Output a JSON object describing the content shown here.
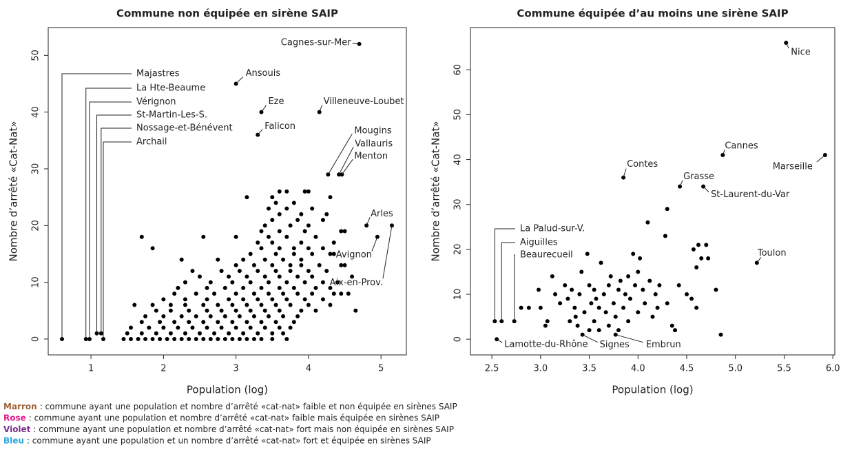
{
  "chart_data": [
    {
      "type": "scatter",
      "title": "Commune non équipée en sirène SAIP",
      "xlabel": "Population (log)",
      "ylabel": "Nombre d’arrêté «Cat-Nat»",
      "color": "#000000",
      "xlim": [
        0.41,
        5.35
      ],
      "ylim": [
        -2.8,
        54.9
      ],
      "xticks": [
        1,
        2,
        3,
        4,
        5
      ],
      "yticks": [
        0,
        10,
        20,
        30,
        40,
        50
      ],
      "x": [
        1.45,
        1.55,
        1.65,
        1.75,
        1.85,
        1.95,
        2.05,
        2.15,
        2.25,
        2.35,
        2.45,
        2.55,
        2.65,
        2.75,
        2.85,
        2.95,
        3.05,
        3.15,
        3.25,
        3.35,
        3.5,
        3.7,
        1.5,
        1.7,
        1.9,
        2.1,
        2.3,
        2.5,
        2.7,
        2.9,
        3.1,
        3.3,
        3.5,
        3.65,
        1.55,
        1.8,
        2.0,
        2.2,
        2.4,
        2.6,
        2.8,
        3.0,
        3.2,
        3.4,
        3.6,
        3.75,
        1.7,
        1.95,
        2.15,
        2.35,
        2.55,
        2.75,
        2.95,
        3.15,
        3.35,
        3.55,
        3.8,
        1.75,
        2.0,
        2.25,
        2.45,
        2.65,
        2.85,
        3.05,
        3.25,
        3.45,
        3.65,
        3.85,
        1.9,
        2.1,
        2.35,
        2.6,
        2.8,
        3.0,
        3.2,
        3.4,
        3.6,
        3.9,
        4.1,
        1.6,
        1.85,
        2.1,
        2.3,
        2.55,
        2.75,
        2.95,
        3.15,
        3.35,
        3.55,
        3.75,
        4.0,
        4.3,
        2.0,
        2.3,
        2.6,
        2.9,
        3.1,
        3.3,
        3.5,
        3.7,
        3.95,
        4.2,
        2.15,
        2.45,
        2.7,
        3.0,
        3.25,
        3.45,
        3.65,
        3.85,
        4.05,
        4.35,
        4.55,
        2.2,
        2.6,
        2.85,
        3.1,
        3.35,
        3.6,
        3.8,
        4.1,
        4.3,
        2.3,
        2.65,
        2.95,
        3.2,
        3.45,
        3.7,
        3.95,
        4.2,
        4.4,
        2.5,
        2.9,
        3.15,
        3.4,
        3.6,
        3.85,
        4.05,
        2.4,
        2.8,
        3.05,
        3.3,
        3.55,
        3.75,
        4.0,
        4.25,
        3.0,
        3.25,
        3.5,
        3.75,
        3.9,
        4.15,
        4.45,
        2.25,
        2.75,
        3.1,
        3.4,
        3.65,
        3.9,
        3.2,
        3.55,
        3.8,
        4.05,
        4.3,
        1.85,
        3.35,
        3.6,
        3.8,
        4.0,
        4.2,
        3.3,
        3.5,
        3.9,
        4.35,
        1.7,
        2.55,
        3.0,
        3.45,
        3.7,
        4.1,
        3.35,
        3.6,
        3.95,
        4.45,
        3.4,
        3.75,
        4.0,
        3.5,
        3.85,
        4.2,
        3.6,
        3.9,
        4.25,
        3.45,
        3.7,
        4.05,
        3.55,
        3.8,
        3.15,
        3.5,
        4.3,
        3.6,
        3.7,
        3.95,
        4.0,
        4.65,
        4.45,
        4.5,
        4.6,
        4.5,
        4.35
      ],
      "values": [
        0,
        0,
        0,
        0,
        0,
        0,
        0,
        0,
        0,
        0,
        0,
        0,
        0,
        0,
        0,
        0,
        0,
        0,
        0,
        0,
        0,
        0,
        1,
        1,
        1,
        1,
        1,
        1,
        1,
        1,
        1,
        1,
        1,
        1,
        2,
        2,
        2,
        2,
        2,
        2,
        2,
        2,
        2,
        2,
        2,
        2,
        3,
        3,
        3,
        3,
        3,
        3,
        3,
        3,
        3,
        3,
        3,
        4,
        4,
        4,
        4,
        4,
        4,
        4,
        4,
        4,
        4,
        4,
        5,
        5,
        5,
        5,
        5,
        5,
        5,
        5,
        5,
        5,
        5,
        6,
        6,
        6,
        6,
        6,
        6,
        6,
        6,
        6,
        6,
        6,
        6,
        6,
        7,
        7,
        7,
        7,
        7,
        7,
        7,
        7,
        7,
        7,
        8,
        8,
        8,
        8,
        8,
        8,
        8,
        8,
        8,
        8,
        8,
        9,
        9,
        9,
        9,
        9,
        9,
        9,
        9,
        9,
        10,
        10,
        10,
        10,
        10,
        10,
        10,
        10,
        10,
        11,
        11,
        11,
        11,
        11,
        11,
        11,
        12,
        12,
        12,
        12,
        12,
        12,
        12,
        12,
        13,
        13,
        13,
        13,
        13,
        13,
        13,
        14,
        14,
        14,
        14,
        14,
        14,
        15,
        15,
        15,
        15,
        15,
        16,
        16,
        16,
        16,
        16,
        16,
        17,
        17,
        17,
        17,
        18,
        18,
        18,
        18,
        18,
        18,
        19,
        19,
        19,
        19,
        20,
        20,
        20,
        21,
        21,
        21,
        22,
        22,
        22,
        23,
        23,
        23,
        24,
        24,
        25,
        25,
        25,
        26,
        26,
        26,
        26,
        5,
        8,
        13,
        11,
        19,
        15
      ],
      "annotations": [
        {
          "text": "Cagnes-sur-Mer",
          "x": 4.7,
          "y": 52,
          "color": "#7b2d8e"
        },
        {
          "text": "Ansouis",
          "x": 3.0,
          "y": 45,
          "color": "#7b2d8e"
        },
        {
          "text": "Eze",
          "x": 3.35,
          "y": 40,
          "color": "#7b2d8e"
        },
        {
          "text": "Villeneuve-Loubet",
          "x": 4.15,
          "y": 40,
          "color": "#7b2d8e"
        },
        {
          "text": "Falicon",
          "x": 3.3,
          "y": 36,
          "color": "#7b2d8e"
        },
        {
          "text": "Mougins",
          "x": 4.27,
          "y": 29,
          "color": "#7b2d8e"
        },
        {
          "text": "Vallauris",
          "x": 4.42,
          "y": 29,
          "color": "#7b2d8e"
        },
        {
          "text": "Menton",
          "x": 4.46,
          "y": 29,
          "color": "#7b2d8e"
        },
        {
          "text": "Arles",
          "x": 4.8,
          "y": 20,
          "color": "#7b2d8e"
        },
        {
          "text": "Avignon",
          "x": 4.95,
          "y": 18,
          "color": "#7b2d8e"
        },
        {
          "text": "Aix-en-Prov.",
          "x": 5.15,
          "y": 20,
          "color": "#7b2d8e"
        },
        {
          "text": "Majastres",
          "x": 0.6,
          "y": 0,
          "color": "#a0653a"
        },
        {
          "text": "La Hte-Beaume",
          "x": 0.93,
          "y": 0,
          "color": "#a0653a"
        },
        {
          "text": "Vérignon",
          "x": 0.98,
          "y": 0,
          "color": "#a0653a"
        },
        {
          "text": "St-Martin-Les-S.",
          "x": 1.08,
          "y": 1,
          "color": "#a0653a"
        },
        {
          "text": "Nossage-et-Bénévent",
          "x": 1.14,
          "y": 1,
          "color": "#a0653a"
        },
        {
          "text": "Archail",
          "x": 1.17,
          "y": 0,
          "color": "#a0653a"
        }
      ]
    },
    {
      "type": "scatter",
      "title": "Commune équipée d’au moins une sirène SAIP",
      "xlabel": "Population (log)",
      "ylabel": "Nombre d’arrêté «Cat-Nat»",
      "color": "#000000",
      "xlim": [
        2.28,
        6.02
      ],
      "ylim": [
        -3.5,
        69.4
      ],
      "xticks": [
        2.5,
        {
          "value": 3,
          "label": "3.0"
        },
        3.5,
        {
          "value": 4,
          "label": "4.0"
        },
        4.5,
        {
          "value": 5,
          "label": "5.0"
        },
        5.5,
        {
          "value": 6,
          "label": "6.0"
        }
      ],
      "yticks": [
        0,
        10,
        20,
        30,
        40,
        50,
        60
      ],
      "x": [
        2.8,
        2.88,
        2.98,
        3.0,
        3.05,
        3.07,
        3.12,
        3.15,
        3.2,
        3.25,
        3.28,
        3.3,
        3.32,
        3.35,
        3.36,
        3.38,
        3.4,
        3.42,
        3.45,
        3.48,
        3.5,
        3.5,
        3.52,
        3.55,
        3.55,
        3.57,
        3.6,
        3.6,
        3.62,
        3.65,
        3.67,
        3.7,
        3.7,
        3.72,
        3.75,
        3.77,
        3.8,
        3.8,
        3.82,
        3.85,
        3.87,
        3.9,
        3.9,
        3.92,
        3.95,
        3.97,
        4.0,
        4.0,
        4.02,
        4.05,
        4.07,
        4.1,
        4.12,
        4.15,
        4.18,
        4.2,
        4.22,
        4.28,
        4.3,
        4.3,
        4.35,
        4.38,
        4.42,
        4.5,
        4.55,
        4.57,
        4.6,
        4.62,
        4.65,
        4.7,
        4.72,
        4.8,
        4.85,
        4.6
      ],
      "values": [
        7,
        7,
        11,
        7,
        3,
        4,
        14,
        10,
        8,
        12,
        9,
        4,
        11,
        7,
        5,
        3,
        10,
        15,
        6,
        19,
        2,
        12,
        8,
        11,
        4,
        9,
        7,
        2,
        17,
        10,
        6,
        12,
        3,
        14,
        8,
        5,
        11,
        2,
        13,
        7,
        10,
        14,
        4,
        9,
        19,
        12,
        6,
        15,
        18,
        11,
        8,
        26,
        13,
        5,
        10,
        7,
        12,
        23,
        29,
        8,
        3,
        2,
        12,
        10,
        9,
        20,
        16,
        21,
        18,
        21,
        18,
        11,
        1,
        7
      ],
      "annotations": [
        {
          "text": "Nice",
          "x": 5.52,
          "y": 66,
          "color": "#29a8e0"
        },
        {
          "text": "Cannes",
          "x": 4.87,
          "y": 41,
          "color": "#29a8e0"
        },
        {
          "text": "Marseille",
          "x": 5.92,
          "y": 41,
          "color": "#29a8e0"
        },
        {
          "text": "Contes",
          "x": 3.85,
          "y": 36,
          "color": "#29a8e0"
        },
        {
          "text": "Grasse",
          "x": 4.43,
          "y": 34,
          "color": "#29a8e0"
        },
        {
          "text": "St-Laurent-du-Var",
          "x": 4.67,
          "y": 34,
          "color": "#29a8e0"
        },
        {
          "text": "Toulon",
          "x": 5.22,
          "y": 17,
          "color": "#29a8e0"
        },
        {
          "text": "La Palud-sur-V.",
          "x": 2.53,
          "y": 4,
          "color": "#e0168a"
        },
        {
          "text": "Aiguilles",
          "x": 2.6,
          "y": 4,
          "color": "#e0168a"
        },
        {
          "text": "Beaurecueil",
          "x": 2.73,
          "y": 4,
          "color": "#e0168a"
        },
        {
          "text": "Lamotte-du-Rhône",
          "x": 2.55,
          "y": 0,
          "color": "#e0168a"
        },
        {
          "text": "Signes",
          "x": 3.43,
          "y": 1,
          "color": "#e0168a"
        },
        {
          "text": "Embrun",
          "x": 3.77,
          "y": 1,
          "color": "#e0168a"
        }
      ]
    }
  ],
  "legend": [
    {
      "label": "Marron",
      "color": "#a0653a",
      "text": ": commune ayant une population et nombre d’arrêté «cat-nat» faible et non équipée en sirènes SAIP"
    },
    {
      "label": "Rose",
      "color": "#e0168a",
      "text": ": commune ayant une population et nombre d’arrêté «cat-nat» faible mais équipée en sirènes SAIP"
    },
    {
      "label": "Violet",
      "color": "#7b2d8e",
      "text": ": commune ayant une population et nombre d’arrêté «cat-nat» fort mais non équipée en sirènes SAIP"
    },
    {
      "label": "Bleu",
      "color": "#29a8e0",
      "text": ": commune ayant une population et un nombre d’arrêté «cat-nat» fort et équipée en sirènes SAIP"
    }
  ]
}
